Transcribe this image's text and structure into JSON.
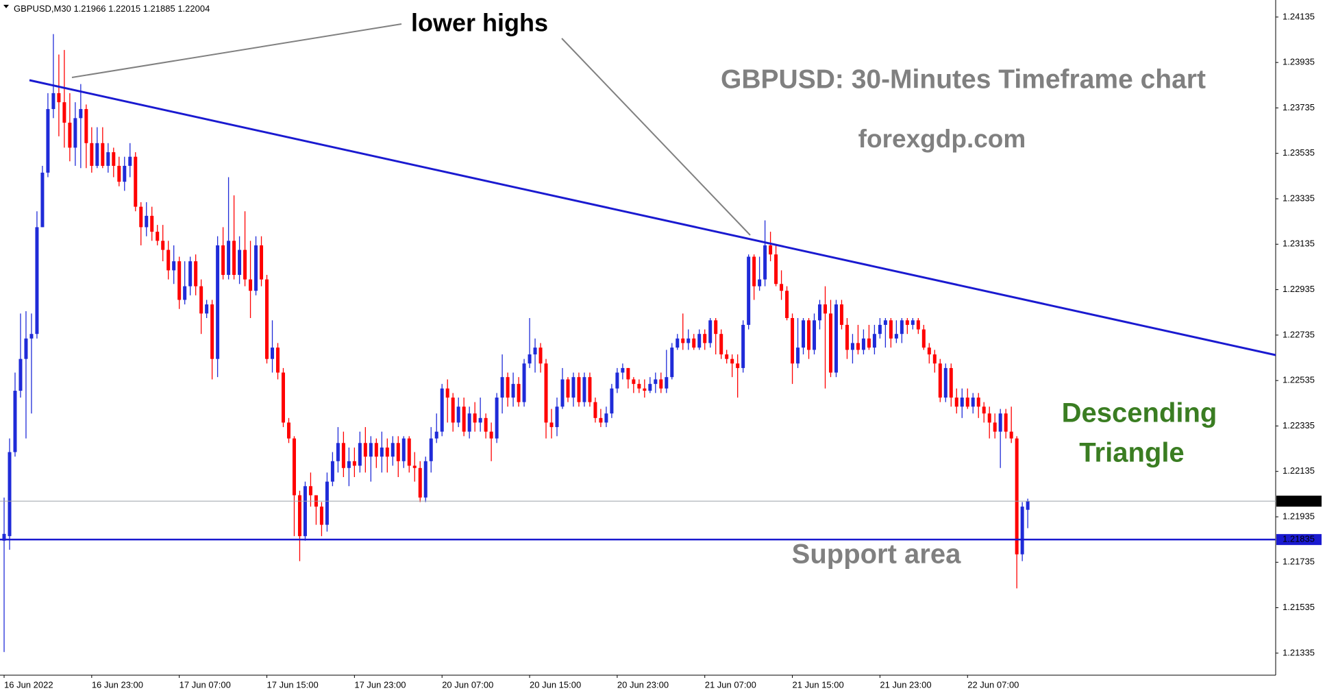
{
  "chart_data": {
    "type": "candlestick",
    "symbol": "GBPUSD,M30",
    "title": "GBPUSD: 30-Minutes Timeframe chart",
    "subtitle": "forexgdp.com",
    "annotations": [
      "lower highs",
      "Descending",
      "Triangle",
      "Support area"
    ],
    "up_color": "#1f2bd8",
    "down_color": "#ff0000",
    "support_color": "#1a1ad0",
    "grid": false,
    "ylim": [
      1.21238,
      1.2421
    ],
    "yticks": [
      1.21335,
      1.21535,
      1.21735,
      1.21935,
      1.22135,
      1.22335,
      1.22535,
      1.22735,
      1.22935,
      1.23135,
      1.23335,
      1.23535,
      1.23735,
      1.23935,
      1.24135
    ],
    "support_level": 1.21835,
    "categories": [
      "16 Jun 2022",
      null,
      null,
      null,
      null,
      null,
      null,
      null,
      null,
      null,
      null,
      null,
      null,
      null,
      null,
      null,
      "16 Jun 23:00",
      null,
      null,
      null,
      null,
      null,
      null,
      null,
      null,
      null,
      null,
      null,
      null,
      null,
      null,
      null,
      "17 Jun 07:00",
      null,
      null,
      null,
      null,
      null,
      null,
      null,
      null,
      null,
      null,
      null,
      null,
      null,
      null,
      null,
      "17 Jun 15:00",
      null,
      null,
      null,
      null,
      null,
      null,
      null,
      null,
      null,
      null,
      null,
      null,
      null,
      null,
      null,
      "17 Jun 23:00",
      null,
      null,
      null,
      null,
      null,
      null,
      null,
      null,
      null,
      null,
      null,
      null,
      null,
      null,
      null,
      "20 Jun 07:00",
      null,
      null,
      null,
      null,
      null,
      null,
      null,
      null,
      null,
      null,
      null,
      null,
      null,
      null,
      null,
      "20 Jun 15:00",
      null,
      null,
      null,
      null,
      null,
      null,
      null,
      null,
      null,
      null,
      null,
      null,
      null,
      null,
      null,
      "20 Jun 23:00",
      null,
      null,
      null,
      null,
      null,
      null,
      null,
      null,
      null,
      null,
      null,
      null,
      null,
      null,
      null,
      "21 Jun 07:00",
      null,
      null,
      null,
      null,
      null,
      null,
      null,
      null,
      null,
      null,
      null,
      null,
      null,
      null,
      null,
      "21 Jun 15:00",
      null,
      null,
      null,
      null,
      null,
      null,
      null,
      null,
      null,
      null,
      null,
      null,
      null,
      null,
      null,
      "21 Jun 23:00",
      null,
      null,
      null,
      null,
      null,
      null,
      null,
      null,
      null,
      null,
      null,
      null,
      null,
      null,
      null,
      "22 Jun 07:00",
      null,
      null,
      null,
      null,
      null,
      null,
      null,
      null,
      null,
      null,
      null
    ],
    "ohlc": [
      [
        1.2183,
        1.2202,
        1.2134,
        1.2186
      ],
      [
        1.2185,
        1.2228,
        1.2179,
        1.2222
      ],
      [
        1.2222,
        1.2257,
        1.222,
        1.2249
      ],
      [
        1.2249,
        1.2283,
        1.2246,
        1.2263
      ],
      [
        1.2263,
        1.2284,
        1.2228,
        1.2272
      ],
      [
        1.2272,
        1.2283,
        1.2239,
        1.2274
      ],
      [
        1.2274,
        1.2328,
        1.2272,
        1.2321
      ],
      [
        1.2321,
        1.2348,
        1.2321,
        1.2345
      ],
      [
        1.2345,
        1.238,
        1.2343,
        1.2373
      ],
      [
        1.2373,
        1.2406,
        1.2369,
        1.238
      ],
      [
        1.238,
        1.2397,
        1.2361,
        1.2376
      ],
      [
        1.2376,
        1.2399,
        1.2356,
        1.2367
      ],
      [
        1.2367,
        1.238,
        1.235,
        1.2356
      ],
      [
        1.2356,
        1.2376,
        1.2348,
        1.2369
      ],
      [
        1.2369,
        1.2384,
        1.2347,
        1.2373
      ],
      [
        1.2373,
        1.2375,
        1.2347,
        1.2358
      ],
      [
        1.2358,
        1.2365,
        1.2345,
        1.2348
      ],
      [
        1.2348,
        1.2365,
        1.2347,
        1.2358
      ],
      [
        1.2358,
        1.2365,
        1.2347,
        1.2348
      ],
      [
        1.2348,
        1.2358,
        1.2345,
        1.2354
      ],
      [
        1.2354,
        1.2356,
        1.2343,
        1.2348
      ],
      [
        1.2348,
        1.2352,
        1.2339,
        1.2341
      ],
      [
        1.2341,
        1.2352,
        1.2337,
        1.2348
      ],
      [
        1.2348,
        1.2358,
        1.2343,
        1.2352
      ],
      [
        1.2352,
        1.2354,
        1.2328,
        1.233
      ],
      [
        1.233,
        1.2332,
        1.2313,
        1.2321
      ],
      [
        1.2321,
        1.2332,
        1.2317,
        1.2326
      ],
      [
        1.2326,
        1.233,
        1.2315,
        1.2319
      ],
      [
        1.2319,
        1.2322,
        1.2313,
        1.2315
      ],
      [
        1.2315,
        1.2322,
        1.2306,
        1.2311
      ],
      [
        1.2311,
        1.2315,
        1.2298,
        1.2302
      ],
      [
        1.2302,
        1.2313,
        1.2296,
        1.2306
      ],
      [
        1.2306,
        1.2308,
        1.2285,
        1.2289
      ],
      [
        1.2289,
        1.2306,
        1.2287,
        1.2295
      ],
      [
        1.2295,
        1.2308,
        1.2291,
        1.2306
      ],
      [
        1.2306,
        1.2309,
        1.2291,
        1.2295
      ],
      [
        1.2295,
        1.2298,
        1.2274,
        1.2283
      ],
      [
        1.2283,
        1.2289,
        1.2281,
        1.2287
      ],
      [
        1.2287,
        1.2289,
        1.2254,
        1.2263
      ],
      [
        1.2263,
        1.2317,
        1.2255,
        1.2313
      ],
      [
        1.2313,
        1.2321,
        1.2298,
        1.23
      ],
      [
        1.23,
        1.2343,
        1.2298,
        1.2315
      ],
      [
        1.2315,
        1.2335,
        1.2298,
        1.23
      ],
      [
        1.23,
        1.2317,
        1.2296,
        1.2311
      ],
      [
        1.2311,
        1.2328,
        1.2295,
        1.2298
      ],
      [
        1.2298,
        1.2315,
        1.2281,
        1.2293
      ],
      [
        1.2293,
        1.2317,
        1.2291,
        1.2313
      ],
      [
        1.2313,
        1.2317,
        1.2295,
        1.2298
      ],
      [
        1.2298,
        1.23,
        1.2261,
        1.2263
      ],
      [
        1.2263,
        1.228,
        1.2257,
        1.2268
      ],
      [
        1.2268,
        1.227,
        1.2254,
        1.2257
      ],
      [
        1.2257,
        1.2259,
        1.2233,
        1.2235
      ],
      [
        1.2235,
        1.2237,
        1.2226,
        1.2228
      ],
      [
        1.2228,
        1.2229,
        1.2185,
        1.2203
      ],
      [
        1.2203,
        1.2205,
        1.2174,
        1.2185
      ],
      [
        1.2185,
        1.2209,
        1.2183,
        1.2207
      ],
      [
        1.2207,
        1.2213,
        1.2198,
        1.2203
      ],
      [
        1.2203,
        1.2203,
        1.219,
        1.2198
      ],
      [
        1.2198,
        1.22,
        1.2185,
        1.219
      ],
      [
        1.219,
        1.2213,
        1.2187,
        1.2209
      ],
      [
        1.2209,
        1.2222,
        1.2207,
        1.2218
      ],
      [
        1.2218,
        1.2233,
        1.2213,
        1.2226
      ],
      [
        1.2226,
        1.2231,
        1.2211,
        1.2215
      ],
      [
        1.2215,
        1.2224,
        1.2207,
        1.2218
      ],
      [
        1.2218,
        1.2224,
        1.2211,
        1.2216
      ],
      [
        1.2216,
        1.2231,
        1.2213,
        1.2226
      ],
      [
        1.2226,
        1.2233,
        1.2213,
        1.222
      ],
      [
        1.222,
        1.2229,
        1.2209,
        1.2226
      ],
      [
        1.2226,
        1.2228,
        1.2215,
        1.222
      ],
      [
        1.222,
        1.2231,
        1.2213,
        1.2224
      ],
      [
        1.2224,
        1.2228,
        1.2213,
        1.222
      ],
      [
        1.222,
        1.2229,
        1.2216,
        1.2226
      ],
      [
        1.2226,
        1.2229,
        1.2211,
        1.2218
      ],
      [
        1.2218,
        1.2229,
        1.2215,
        1.2228
      ],
      [
        1.2228,
        1.2229,
        1.2213,
        1.2216
      ],
      [
        1.2216,
        1.2222,
        1.2209,
        1.2215
      ],
      [
        1.2215,
        1.2218,
        1.22,
        1.2202
      ],
      [
        1.2202,
        1.222,
        1.22,
        1.2218
      ],
      [
        1.2218,
        1.2233,
        1.2213,
        1.2228
      ],
      [
        1.2228,
        1.2239,
        1.2226,
        1.2231
      ],
      [
        1.2231,
        1.2252,
        1.2229,
        1.225
      ],
      [
        1.225,
        1.2254,
        1.2235,
        1.2246
      ],
      [
        1.2246,
        1.2248,
        1.2231,
        1.2235
      ],
      [
        1.2235,
        1.2246,
        1.2233,
        1.2242
      ],
      [
        1.2242,
        1.2246,
        1.2229,
        1.2231
      ],
      [
        1.2231,
        1.2242,
        1.2228,
        1.2239
      ],
      [
        1.2239,
        1.2244,
        1.2231,
        1.2235
      ],
      [
        1.2235,
        1.2246,
        1.2231,
        1.2237
      ],
      [
        1.2237,
        1.2239,
        1.2228,
        1.2231
      ],
      [
        1.2231,
        1.2235,
        1.2218,
        1.2228
      ],
      [
        1.2228,
        1.2248,
        1.2226,
        1.2246
      ],
      [
        1.2246,
        1.2265,
        1.2239,
        1.2255
      ],
      [
        1.2255,
        1.2257,
        1.2242,
        1.2246
      ],
      [
        1.2246,
        1.2257,
        1.2242,
        1.2252
      ],
      [
        1.2252,
        1.2255,
        1.2242,
        1.2244
      ],
      [
        1.2244,
        1.2263,
        1.2242,
        1.2261
      ],
      [
        1.2261,
        1.2281,
        1.2259,
        1.2265
      ],
      [
        1.2265,
        1.2272,
        1.2257,
        1.2268
      ],
      [
        1.2268,
        1.227,
        1.2257,
        1.2261
      ],
      [
        1.2261,
        1.2263,
        1.2228,
        1.2235
      ],
      [
        1.2235,
        1.2241,
        1.2228,
        1.2233
      ],
      [
        1.2233,
        1.2246,
        1.2229,
        1.2242
      ],
      [
        1.2242,
        1.2259,
        1.2241,
        1.2254
      ],
      [
        1.2254,
        1.2255,
        1.2244,
        1.2246
      ],
      [
        1.2246,
        1.2257,
        1.2242,
        1.2255
      ],
      [
        1.2255,
        1.2257,
        1.2242,
        1.2244
      ],
      [
        1.2244,
        1.2257,
        1.2242,
        1.2255
      ],
      [
        1.2255,
        1.2257,
        1.2242,
        1.2244
      ],
      [
        1.2244,
        1.2246,
        1.2235,
        1.2237
      ],
      [
        1.2237,
        1.2241,
        1.2233,
        1.2235
      ],
      [
        1.2235,
        1.2242,
        1.2233,
        1.2239
      ],
      [
        1.2239,
        1.2252,
        1.2237,
        1.225
      ],
      [
        1.225,
        1.2259,
        1.2248,
        1.2257
      ],
      [
        1.2257,
        1.2261,
        1.2254,
        1.2259
      ],
      [
        1.2259,
        1.2259,
        1.225,
        1.2254
      ],
      [
        1.2254,
        1.2255,
        1.2248,
        1.2252
      ],
      [
        1.2252,
        1.2254,
        1.2248,
        1.225
      ],
      [
        1.225,
        1.2254,
        1.2246,
        1.2249
      ],
      [
        1.2249,
        1.2255,
        1.2248,
        1.2252
      ],
      [
        1.2252,
        1.2257,
        1.2248,
        1.2254
      ],
      [
        1.2254,
        1.2257,
        1.2248,
        1.225
      ],
      [
        1.225,
        1.2267,
        1.2248,
        1.2255
      ],
      [
        1.2255,
        1.227,
        1.2254,
        1.2268
      ],
      [
        1.2268,
        1.2274,
        1.2267,
        1.2272
      ],
      [
        1.2272,
        1.2283,
        1.2267,
        1.227
      ],
      [
        1.227,
        1.2276,
        1.2267,
        1.2272
      ],
      [
        1.2272,
        1.2274,
        1.2267,
        1.2268
      ],
      [
        1.2268,
        1.2276,
        1.2267,
        1.2274
      ],
      [
        1.2274,
        1.2276,
        1.2267,
        1.227
      ],
      [
        1.227,
        1.2281,
        1.2268,
        1.228
      ],
      [
        1.228,
        1.2281,
        1.2265,
        1.2274
      ],
      [
        1.2274,
        1.2276,
        1.2263,
        1.2265
      ],
      [
        1.2265,
        1.2267,
        1.2261,
        1.2263
      ],
      [
        1.2263,
        1.2265,
        1.2255,
        1.2261
      ],
      [
        1.2261,
        1.2265,
        1.2246,
        1.2259
      ],
      [
        1.2259,
        1.228,
        1.2257,
        1.2278
      ],
      [
        1.2278,
        1.2309,
        1.2276,
        1.2308
      ],
      [
        1.2308,
        1.2309,
        1.2289,
        1.2295
      ],
      [
        1.2295,
        1.2308,
        1.2293,
        1.2298
      ],
      [
        1.2298,
        1.2324,
        1.2295,
        1.2313
      ],
      [
        1.2313,
        1.2319,
        1.2306,
        1.2309
      ],
      [
        1.2309,
        1.2313,
        1.2295,
        1.2296
      ],
      [
        1.2296,
        1.2302,
        1.2289,
        1.2293
      ],
      [
        1.2293,
        1.2295,
        1.228,
        1.2281
      ],
      [
        1.2281,
        1.2283,
        1.2252,
        1.2261
      ],
      [
        1.2261,
        1.2281,
        1.2259,
        1.2268
      ],
      [
        1.2268,
        1.2281,
        1.2265,
        1.228
      ],
      [
        1.228,
        1.2281,
        1.2263,
        1.2267
      ],
      [
        1.2267,
        1.2283,
        1.2265,
        1.228
      ],
      [
        1.228,
        1.2289,
        1.2276,
        1.2287
      ],
      [
        1.2287,
        1.2295,
        1.225,
        1.2283
      ],
      [
        1.2283,
        1.2289,
        1.2255,
        1.2257
      ],
      [
        1.2257,
        1.2289,
        1.2255,
        1.2287
      ],
      [
        1.2287,
        1.2289,
        1.2276,
        1.2278
      ],
      [
        1.2278,
        1.2281,
        1.2263,
        1.2267
      ],
      [
        1.2267,
        1.2274,
        1.2261,
        1.227
      ],
      [
        1.227,
        1.2278,
        1.2265,
        1.2267
      ],
      [
        1.2267,
        1.2276,
        1.2265,
        1.2272
      ],
      [
        1.2272,
        1.2278,
        1.2267,
        1.2268
      ],
      [
        1.2268,
        1.2278,
        1.2265,
        1.2274
      ],
      [
        1.2274,
        1.2281,
        1.2272,
        1.2278
      ],
      [
        1.2278,
        1.2281,
        1.2268,
        1.228
      ],
      [
        1.228,
        1.2281,
        1.2268,
        1.2272
      ],
      [
        1.2272,
        1.228,
        1.227,
        1.2274
      ],
      [
        1.2274,
        1.2281,
        1.227,
        1.228
      ],
      [
        1.228,
        1.2281,
        1.2274,
        1.2278
      ],
      [
        1.2278,
        1.2281,
        1.2276,
        1.228
      ],
      [
        1.228,
        1.2281,
        1.2274,
        1.2276
      ],
      [
        1.2276,
        1.2278,
        1.2267,
        1.2268
      ],
      [
        1.2268,
        1.227,
        1.2261,
        1.2265
      ],
      [
        1.2265,
        1.2267,
        1.2257,
        1.2261
      ],
      [
        1.2261,
        1.2263,
        1.2244,
        1.2246
      ],
      [
        1.2246,
        1.2261,
        1.2244,
        1.2259
      ],
      [
        1.2259,
        1.2261,
        1.2242,
        1.2246
      ],
      [
        1.2246,
        1.225,
        1.2239,
        1.2242
      ],
      [
        1.2242,
        1.225,
        1.2237,
        1.2246
      ],
      [
        1.2246,
        1.225,
        1.2241,
        1.2242
      ],
      [
        1.2242,
        1.2248,
        1.2239,
        1.2246
      ],
      [
        1.2246,
        1.2248,
        1.2237,
        1.2242
      ],
      [
        1.2242,
        1.2244,
        1.2235,
        1.2239
      ],
      [
        1.2239,
        1.2242,
        1.2228,
        1.2235
      ],
      [
        1.2235,
        1.2239,
        1.2228,
        1.2231
      ],
      [
        1.2231,
        1.2241,
        1.2215,
        1.2239
      ],
      [
        1.2239,
        1.2241,
        1.2228,
        1.2231
      ],
      [
        1.2231,
        1.2242,
        1.2226,
        1.2228
      ],
      [
        1.2228,
        1.2229,
        1.2162,
        1.2177
      ],
      [
        1.2177,
        1.22,
        1.2174,
        1.2198
      ],
      [
        1.21966,
        1.22015,
        1.21885,
        1.22004
      ]
    ]
  }
}
